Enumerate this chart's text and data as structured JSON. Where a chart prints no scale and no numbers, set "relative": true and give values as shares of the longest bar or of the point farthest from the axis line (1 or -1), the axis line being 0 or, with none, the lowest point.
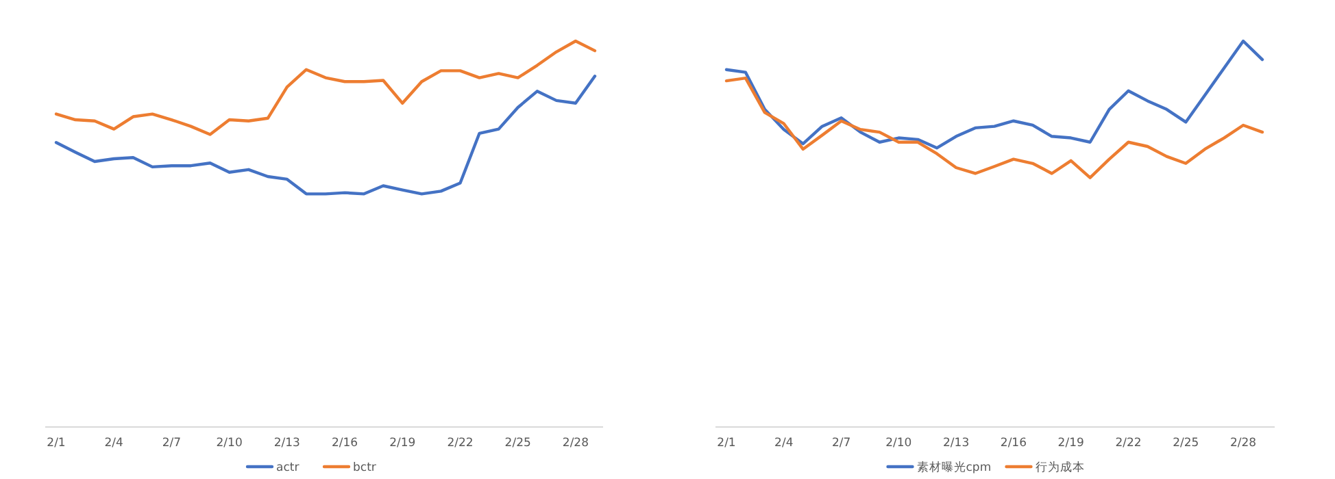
{
  "chart_data": [
    {
      "type": "line",
      "relative": true,
      "legend": "bottom",
      "categories": [
        "2/1",
        null,
        null,
        "2/4",
        null,
        null,
        "2/7",
        null,
        null,
        "2/10",
        null,
        null,
        "2/13",
        null,
        null,
        "2/16",
        null,
        null,
        "2/19",
        null,
        null,
        "2/22",
        null,
        null,
        "2/25",
        null,
        null,
        "2/28",
        null
      ],
      "series": [
        {
          "name": "actr",
          "color": "#4472c4",
          "values": [
            0.737,
            0.712,
            0.688,
            0.695,
            0.698,
            0.674,
            0.677,
            0.677,
            0.684,
            0.66,
            0.667,
            0.649,
            0.642,
            0.604,
            0.604,
            0.607,
            0.604,
            0.625,
            0.614,
            0.604,
            0.611,
            0.632,
            0.761,
            0.772,
            0.828,
            0.87,
            0.846,
            0.839,
            0.909
          ]
        },
        {
          "name": "bctr",
          "color": "#ed7d31",
          "values": [
            0.811,
            0.796,
            0.793,
            0.772,
            0.804,
            0.811,
            0.796,
            0.779,
            0.758,
            0.796,
            0.793,
            0.8,
            0.881,
            0.926,
            0.905,
            0.895,
            0.895,
            0.898,
            0.839,
            0.895,
            0.923,
            0.923,
            0.905,
            0.916,
            0.905,
            0.937,
            0.972,
            1,
            0.975
          ]
        }
      ]
    },
    {
      "type": "line",
      "relative": true,
      "legend": "bottom",
      "categories": [
        "2/1",
        null,
        null,
        "2/4",
        null,
        null,
        "2/7",
        null,
        null,
        "2/10",
        null,
        null,
        "2/13",
        null,
        null,
        "2/16",
        null,
        null,
        "2/19",
        null,
        null,
        "2/22",
        null,
        null,
        "2/25",
        null,
        null,
        "2/28",
        null
      ],
      "series": [
        {
          "name": "素材曝光cpm",
          "color": "#4472c4",
          "values": [
            0.926,
            0.919,
            0.823,
            0.771,
            0.734,
            0.779,
            0.801,
            0.764,
            0.738,
            0.749,
            0.745,
            0.723,
            0.753,
            0.775,
            0.779,
            0.793,
            0.782,
            0.753,
            0.749,
            0.738,
            0.823,
            0.871,
            0.845,
            0.823,
            0.79,
            0.86,
            0.93,
            1,
            0.952
          ]
        },
        {
          "name": "行为成本",
          "color": "#ed7d31",
          "values": [
            0.897,
            0.904,
            0.815,
            0.786,
            0.72,
            0.756,
            0.793,
            0.771,
            0.764,
            0.738,
            0.738,
            0.708,
            0.672,
            0.657,
            0.675,
            0.694,
            0.683,
            0.657,
            0.69,
            0.646,
            0.694,
            0.738,
            0.727,
            0.701,
            0.683,
            0.72,
            0.749,
            0.782,
            0.764
          ]
        }
      ]
    }
  ]
}
